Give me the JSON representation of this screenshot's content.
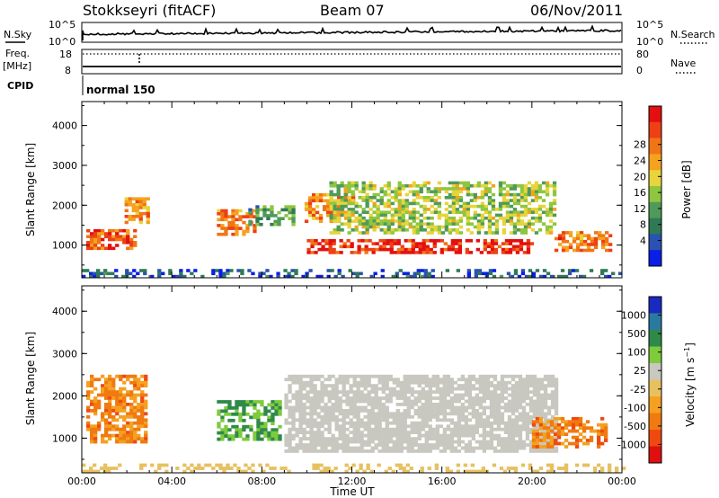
{
  "header": {
    "station": "Stokkseyri (fitACF)",
    "beam": "Beam 07",
    "date": "06/Nov/2011"
  },
  "status_panels": {
    "nsky_label": "N.Sky",
    "nsky_ticks": [
      "10^5",
      "10^0"
    ],
    "nsearch_label": "N.Search",
    "nsearch_ticks": [
      "10^5",
      "10^0"
    ],
    "freq_label": "Freq.",
    "freq_unit": "[MHz]",
    "freq_ticks": [
      "18",
      "8"
    ],
    "nave_label": "Nave",
    "nave_ticks": [
      "80",
      "0"
    ],
    "cpid_label": "CPID",
    "cpid_value": "normal 150"
  },
  "chart_data": [
    {
      "type": "heatmap",
      "title": "",
      "xlabel": "Time UT",
      "ylabel": "Slant Range [km]",
      "xlim": [
        0,
        24
      ],
      "ylim": [
        180,
        4600
      ],
      "x_ticks": [
        "00:00",
        "04:00",
        "08:00",
        "12:00",
        "16:00",
        "20:00",
        "00:00"
      ],
      "y_ticks": [
        1000,
        2000,
        3000,
        4000
      ],
      "colorbar": {
        "label": "Power [dB]",
        "ticks": [
          "4",
          "8",
          "12",
          "16",
          "20",
          "24",
          "28"
        ],
        "range": [
          0,
          32
        ],
        "colors": [
          "#0a1ee6",
          "#2a52b0",
          "#2f7a55",
          "#4f9a5a",
          "#8ec63f",
          "#e8d43b",
          "#f5a21e",
          "#f07516",
          "#ee4014",
          "#e40f0f"
        ]
      },
      "features": [
        {
          "t0": 0.0,
          "t1": 24.0,
          "r0": 180,
          "r1": 400,
          "power": 5,
          "desc": "near-range clutter"
        },
        {
          "t0": 0.2,
          "t1": 2.3,
          "r0": 900,
          "r1": 1400,
          "power": 26
        },
        {
          "t0": 1.9,
          "t1": 2.9,
          "r0": 1600,
          "r1": 2200,
          "power": 22
        },
        {
          "t0": 6.0,
          "t1": 7.6,
          "r0": 1300,
          "r1": 1900,
          "power": 24
        },
        {
          "t0": 7.4,
          "t1": 9.4,
          "r0": 1500,
          "r1": 2000,
          "power": 11
        },
        {
          "t0": 9.9,
          "t1": 12.0,
          "r0": 1600,
          "r1": 2300,
          "power": 22
        },
        {
          "t0": 10.0,
          "t1": 20.0,
          "r0": 800,
          "r1": 1150,
          "power": 29
        },
        {
          "t0": 11.0,
          "t1": 21.0,
          "r0": 1300,
          "r1": 2600,
          "power": 15
        },
        {
          "t0": 21.0,
          "t1": 23.5,
          "r0": 900,
          "r1": 1350,
          "power": 24
        }
      ]
    },
    {
      "type": "heatmap",
      "title": "",
      "xlabel": "Time UT",
      "ylabel": "Slant Range [km]",
      "xlim": [
        0,
        24
      ],
      "ylim": [
        180,
        4600
      ],
      "x_ticks": [
        "00:00",
        "04:00",
        "08:00",
        "12:00",
        "16:00",
        "20:00",
        "00:00"
      ],
      "y_ticks": [
        1000,
        2000,
        3000,
        4000
      ],
      "colorbar": {
        "label": "Velocity [m s^-1]",
        "ticks": [
          "1000",
          "500",
          "100",
          "25",
          "-25",
          "-100",
          "-500",
          "-1000"
        ],
        "range": [
          -1000,
          1000
        ],
        "colors": [
          "#1a2ac0",
          "#2a7aa0",
          "#2f8a4a",
          "#7ecb3c",
          "#c8c8c0",
          "#e7c060",
          "#f5a020",
          "#f07a10",
          "#ee4a10",
          "#e00f0f"
        ],
        "ground_scatter": "#c8c8c0"
      },
      "features": [
        {
          "t0": 0.0,
          "t1": 24.0,
          "r0": 180,
          "r1": 400,
          "velocity": -60,
          "desc": "near-range clutter"
        },
        {
          "t0": 0.2,
          "t1": 2.8,
          "r0": 900,
          "r1": 2500,
          "velocity": -450
        },
        {
          "t0": 6.0,
          "t1": 8.8,
          "r0": 1000,
          "r1": 1900,
          "velocity": 400
        },
        {
          "t0": 9.0,
          "t1": 21.0,
          "r0": 700,
          "r1": 2500,
          "velocity": 0,
          "desc": "ground scatter"
        },
        {
          "t0": 20.0,
          "t1": 23.2,
          "r0": 800,
          "r1": 1500,
          "velocity": -500
        }
      ]
    }
  ]
}
